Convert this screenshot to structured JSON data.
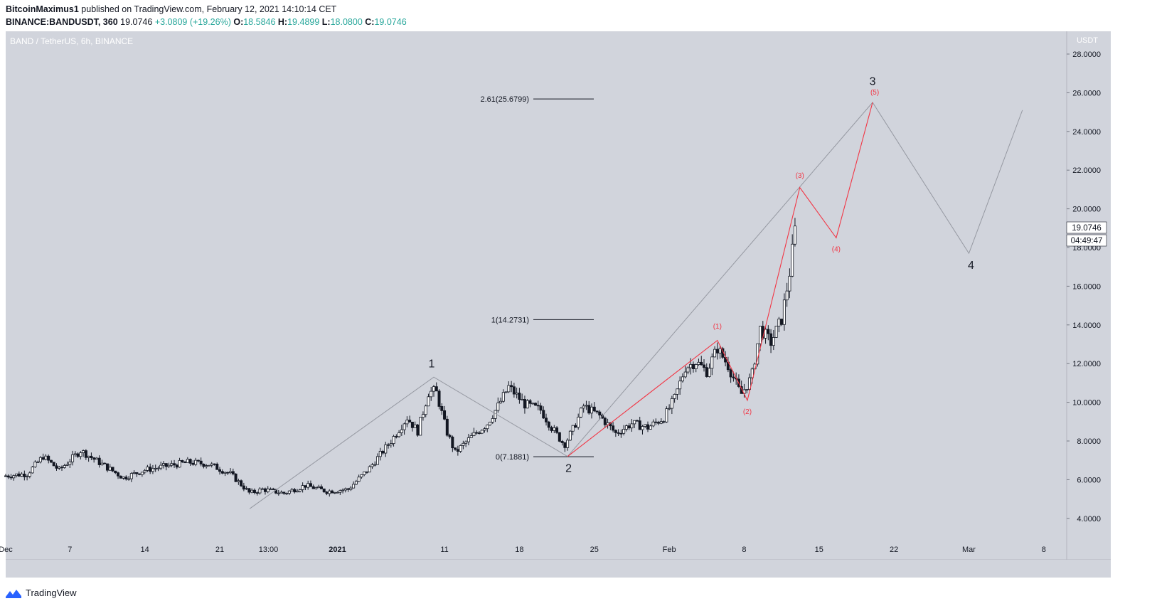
{
  "header": {
    "author": "BitcoinMaximus1",
    "published": "published on TradingView.com, February 12, 2021 14:10:14 CET",
    "symbol": "BINANCE:BANDUSDT, 360",
    "last": "19.0746",
    "change": "+3.0809 (+19.26%)",
    "o_label": "O:",
    "o": "18.5846",
    "h_label": "H:",
    "h": "19.4899",
    "l_label": "L:",
    "l": "18.0800",
    "c_label": "C:",
    "c": "19.0746"
  },
  "footer": {
    "brand": "TradingView"
  },
  "colors": {
    "plot_bg": "#d1d4dc",
    "candle": "#131722",
    "wave_gray": "#9598a1",
    "wave_red": "#f23645",
    "green": "#26a69a"
  },
  "chart_data": {
    "type": "candlestick",
    "title": "BAND / TetherUS, 6h, BINANCE",
    "y_axis_unit": "USDT",
    "ylim": [
      3.2,
      29.0
    ],
    "y_ticks": [
      4,
      6,
      8,
      10,
      12,
      14,
      16,
      18,
      20,
      22,
      24,
      26,
      28
    ],
    "y_tick_labels": [
      "4.0000",
      "6.0000",
      "8.0000",
      "10.0000",
      "12.0000",
      "14.0000",
      "16.0000",
      "18.0000",
      "20.0000",
      "22.0000",
      "24.0000",
      "26.0000",
      "28.0000"
    ],
    "x_range_days": [
      0,
      95
    ],
    "x_ticks": [
      {
        "day": 0,
        "label": "Dec"
      },
      {
        "day": 6,
        "label": "7"
      },
      {
        "day": 13,
        "label": "14"
      },
      {
        "day": 20,
        "label": "21"
      },
      {
        "day": 24.55,
        "label": "13:00"
      },
      {
        "day": 31,
        "label": "2021"
      },
      {
        "day": 41,
        "label": "11"
      },
      {
        "day": 48,
        "label": "18"
      },
      {
        "day": 55,
        "label": "25"
      },
      {
        "day": 62,
        "label": "Feb"
      },
      {
        "day": 69,
        "label": "8"
      },
      {
        "day": 76,
        "label": "15"
      },
      {
        "day": 83,
        "label": "22"
      },
      {
        "day": 90,
        "label": "Mar"
      },
      {
        "day": 97,
        "label": "8"
      }
    ],
    "price_anchors": [
      [
        0,
        6.2
      ],
      [
        2,
        6.3
      ],
      [
        3.5,
        7.2
      ],
      [
        5,
        6.5
      ],
      [
        7,
        7.5
      ],
      [
        9,
        6.8
      ],
      [
        11,
        6.1
      ],
      [
        13,
        6.5
      ],
      [
        15,
        6.7
      ],
      [
        17,
        6.9
      ],
      [
        19,
        6.8
      ],
      [
        21,
        6.3
      ],
      [
        22.8,
        5.3
      ],
      [
        24,
        5.5
      ],
      [
        26,
        5.3
      ],
      [
        28,
        5.7
      ],
      [
        30,
        5.4
      ],
      [
        32,
        5.5
      ],
      [
        34,
        6.6
      ],
      [
        36,
        8.0
      ],
      [
        37.5,
        9.2
      ],
      [
        38.5,
        8.5
      ],
      [
        39.5,
        10.5
      ],
      [
        40.2,
        10.6
      ],
      [
        41.2,
        8.5
      ],
      [
        42,
        7.4
      ],
      [
        43.5,
        8.2
      ],
      [
        45,
        8.9
      ],
      [
        46,
        9.8
      ],
      [
        47,
        10.8
      ],
      [
        48.5,
        9.9
      ],
      [
        50,
        9.6
      ],
      [
        51,
        8.7
      ],
      [
        52.2,
        7.8
      ],
      [
        53,
        8.6
      ],
      [
        54,
        9.8
      ],
      [
        55.5,
        9.3
      ],
      [
        57,
        8.4
      ],
      [
        58.5,
        8.9
      ],
      [
        60,
        8.7
      ],
      [
        61.5,
        9.2
      ],
      [
        62.5,
        10.2
      ],
      [
        63.5,
        11.8
      ],
      [
        64.5,
        12.1
      ],
      [
        65.5,
        11.6
      ],
      [
        66.5,
        12.8
      ],
      [
        67.5,
        11.9
      ],
      [
        68.7,
        10.4
      ],
      [
        69.7,
        11.3
      ],
      [
        70.5,
        13.8
      ],
      [
        71.5,
        13.1
      ],
      [
        72.5,
        14.3
      ],
      [
        73.2,
        16.5
      ],
      [
        73.8,
        19.1
      ]
    ],
    "last_price": "19.0746",
    "countdown": "04:49:47",
    "fib_levels": [
      {
        "ratio_label": "2.61(25.6799)",
        "price": 25.6799
      },
      {
        "ratio_label": "1(14.2731)",
        "price": 14.2731
      },
      {
        "ratio_label": "0(7.1881)",
        "price": 7.1881
      }
    ],
    "gray_wave": {
      "points": [
        [
          22.8,
          4.5
        ],
        [
          40,
          11.3
        ],
        [
          52.5,
          7.2
        ],
        [
          81,
          25.5
        ],
        [
          90,
          17.7
        ],
        [
          95,
          25.1
        ]
      ],
      "labels": [
        {
          "text": "1",
          "day": 39.8,
          "price": 11.8
        },
        {
          "text": "2",
          "day": 52.6,
          "price": 6.4
        },
        {
          "text": "3",
          "day": 81,
          "price": 26.4
        },
        {
          "text": "4",
          "day": 90.2,
          "price": 16.9
        }
      ]
    },
    "red_wave": {
      "points": [
        [
          52.5,
          7.2
        ],
        [
          66.5,
          13.2
        ],
        [
          69.3,
          10.1
        ],
        [
          74.2,
          21.1
        ],
        [
          77.6,
          18.5
        ],
        [
          81,
          25.5
        ]
      ],
      "labels": [
        {
          "text": "(1)",
          "day": 66.5,
          "price": 13.8
        },
        {
          "text": "(2)",
          "day": 69.3,
          "price": 9.4
        },
        {
          "text": "(3)",
          "day": 74.2,
          "price": 21.6
        },
        {
          "text": "(4)",
          "day": 77.6,
          "price": 17.8
        },
        {
          "text": "(5)",
          "day": 81.2,
          "price": 25.9
        }
      ]
    }
  }
}
